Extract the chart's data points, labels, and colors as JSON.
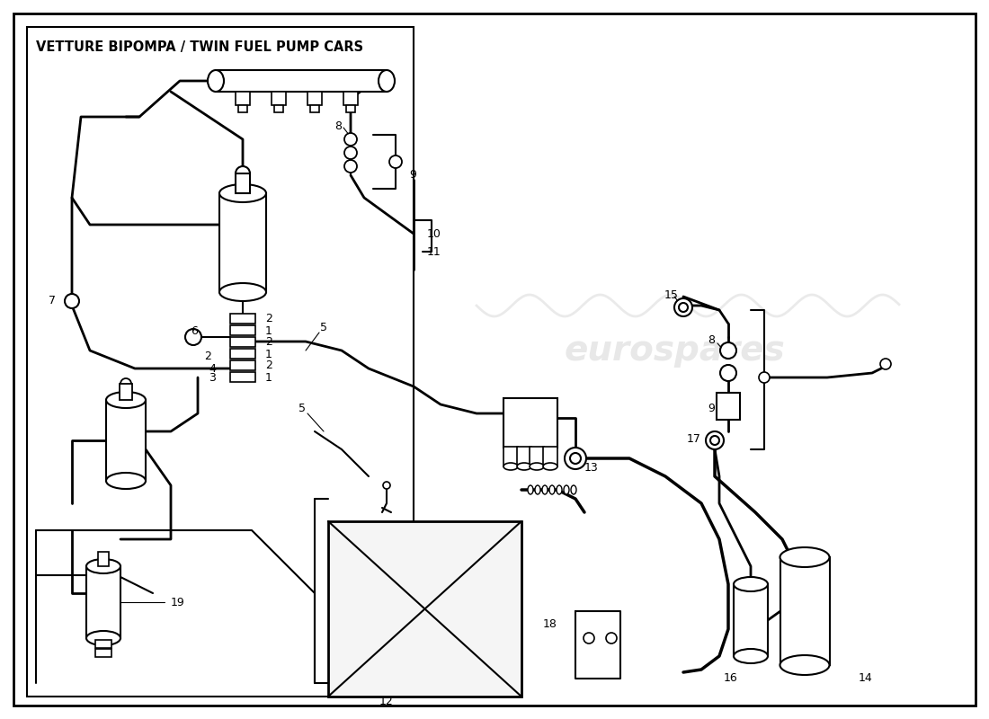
{
  "box_title": "VETTURE BIPOMPA / TWIN FUEL PUMP CARS",
  "watermark": "eurospares",
  "bg": "#ffffff",
  "lc": "#000000",
  "wc": "#cccccc",
  "fig_w": 11.0,
  "fig_h": 8.0,
  "dpi": 100
}
